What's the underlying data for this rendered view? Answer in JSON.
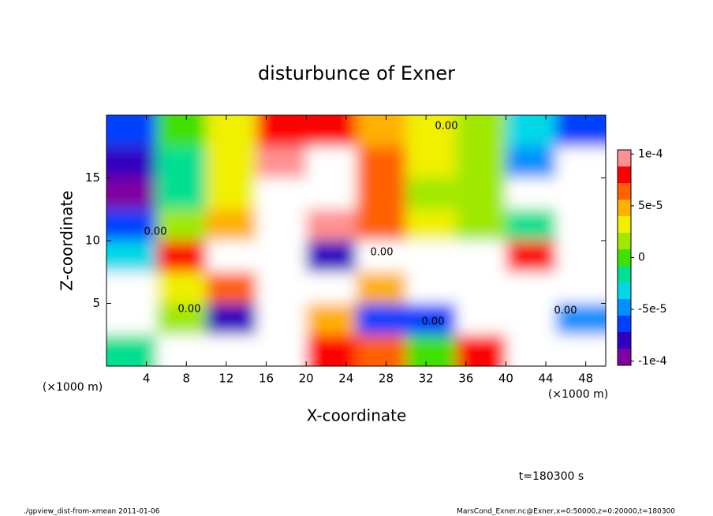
{
  "chart_data": {
    "type": "heatmap",
    "title": "disturbunce of Exner",
    "x_label": "X-coordinate",
    "y_label": "Z-coordinate",
    "x_unit": "(×1000 m)",
    "y_unit": "(×1000 m)",
    "time_label": "t=180300 s",
    "footer_left": "./gpview_dist-from-xmean  2011-01-06",
    "footer_right": "MarsCond_Exner.nc@Exner,x=0:50000,z=0:20000,t=180300",
    "contour_labels": [
      "0.00",
      "0.00",
      "0.00",
      "0.00",
      "0.00",
      "0.00"
    ],
    "xlim": [
      0,
      50
    ],
    "ylim": [
      0,
      20
    ],
    "xticks": [
      4,
      8,
      12,
      16,
      20,
      24,
      28,
      32,
      36,
      40,
      44,
      48
    ],
    "yticks": [
      5,
      10,
      15
    ],
    "x": [
      2.5,
      7.5,
      12.5,
      17.5,
      22.5,
      27.5,
      32.5,
      37.5,
      42.5,
      47.5
    ],
    "y": [
      18.75,
      16.25,
      13.75,
      11.25,
      8.75,
      6.25,
      3.75,
      1.25
    ],
    "values": [
      [
        -6e-05,
        0,
        3e-05,
        8e-05,
        8e-05,
        5e-05,
        3e-05,
        1e-05,
        -3e-05,
        -7e-05
      ],
      [
        -8e-05,
        -2e-05,
        3e-05,
        9e-05,
        0.00012,
        6e-05,
        3e-05,
        1e-05,
        -5e-05,
        -0.00012
      ],
      [
        -9e-05,
        -1e-05,
        3e-05,
        0.00012,
        0.00012,
        6e-05,
        2e-05,
        1e-05,
        -0.00012,
        -0.00012
      ],
      [
        -6e-05,
        1e-05,
        4e-05,
        0.00012,
        0.0001,
        7e-05,
        3e-05,
        2e-05,
        -2e-05,
        -0.00012
      ],
      [
        -3e-05,
        8e-05,
        0.00012,
        0.00012,
        -8e-05,
        0.00012,
        0.00012,
        0.00012,
        8e-05,
        -0.00012
      ],
      [
        -0.00012,
        3e-05,
        6e-05,
        0.00012,
        -0.00012,
        4e-05,
        0.00012,
        0.00012,
        0.00012,
        -0.00012
      ],
      [
        -0.00012,
        1e-05,
        -8e-05,
        0.00012,
        5e-05,
        -6e-05,
        -6e-05,
        0.00012,
        0.00012,
        -5e-05
      ],
      [
        -1e-05,
        0.00012,
        -0.00012,
        0.00012,
        8e-05,
        6e-05,
        0,
        8e-05,
        0.00012,
        0.00012
      ]
    ],
    "clim": [
      -0.000104,
      0.000104
    ],
    "colors": [
      "#8000a0",
      "#3000c0",
      "#0040ff",
      "#0090ff",
      "#00d8e8",
      "#00e090",
      "#40e000",
      "#a0e800",
      "#f0f000",
      "#ffb000",
      "#ff6000",
      "#ff0000",
      "#ff9090"
    ],
    "out_of_range_color": "#ffffff",
    "cticks": [
      {
        "value": 0.0001,
        "label": "1e-4"
      },
      {
        "value": 5e-05,
        "label": "5e-5"
      },
      0,
      {
        "value": -5e-05,
        "label": "-5e-5"
      },
      {
        "value": -0.0001,
        "label": "-1e-4"
      }
    ]
  }
}
